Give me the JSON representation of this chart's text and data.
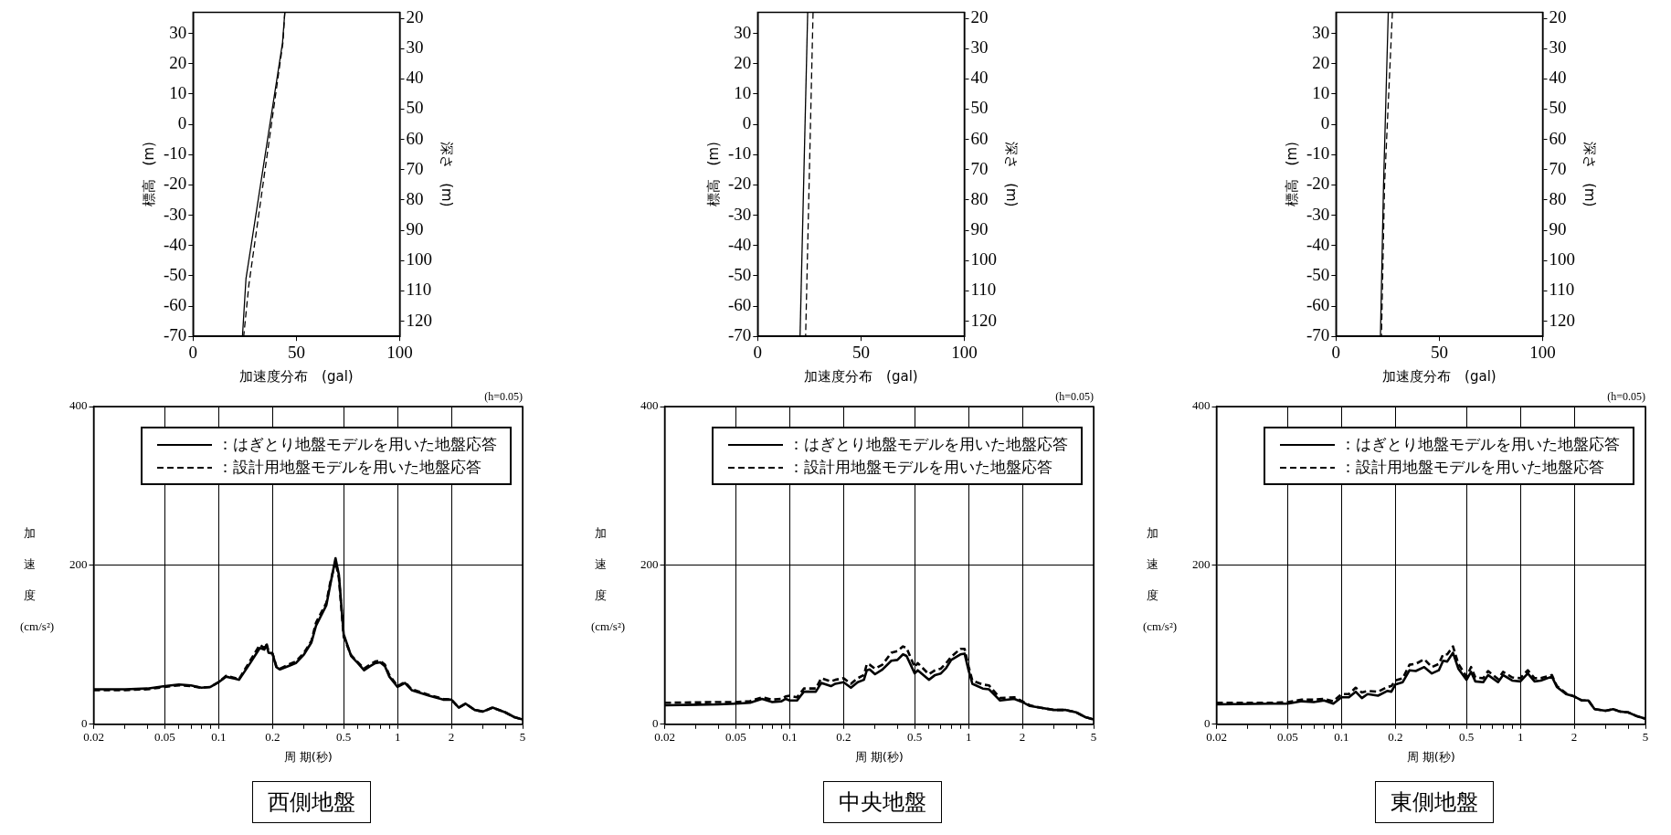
{
  "chart_data": [
    {
      "type": "line",
      "xlabel": "加速度分布　(gal)",
      "ylabel": "標高　(m)",
      "y2label": "深さ　(m)",
      "xlim": [
        0,
        100
      ],
      "xticks": [
        0,
        50,
        100
      ],
      "ylim": [
        -70,
        37
      ],
      "yticks": [
        -70,
        -60,
        -50,
        -40,
        -30,
        -20,
        -10,
        0,
        10,
        20,
        30
      ],
      "y2lim": [
        125,
        18
      ],
      "y2ticks": [
        20,
        30,
        40,
        50,
        60,
        70,
        80,
        90,
        100,
        110,
        120
      ],
      "grid": false,
      "marker": "none",
      "series": [
        {
          "color": "#000000",
          "line_style": "solid",
          "x": [
            44.4,
            43.3,
            25.6,
            23.9
          ],
          "values": [
            37,
            27,
            -51,
            -70
          ]
        },
        {
          "color": "#000000",
          "line_style": "dashed",
          "x": [
            44.4,
            43.5,
            27,
            24.5
          ],
          "values": [
            37,
            27,
            -53,
            -70
          ]
        }
      ]
    },
    {
      "type": "line",
      "xlabel": "加速度分布　(gal)",
      "ylabel": "標高　(m)",
      "y2label": "深さ　(m)",
      "xlim": [
        0,
        100
      ],
      "xticks": [
        0,
        50,
        100
      ],
      "ylim": [
        -70,
        37
      ],
      "yticks": [
        -70,
        -60,
        -50,
        -40,
        -30,
        -20,
        -10,
        0,
        10,
        20,
        30
      ],
      "y2lim": [
        125,
        18
      ],
      "y2ticks": [
        20,
        30,
        40,
        50,
        60,
        70,
        80,
        90,
        100,
        110,
        120
      ],
      "grid": false,
      "marker": "none",
      "series": [
        {
          "color": "#000000",
          "line_style": "solid",
          "x": [
            24.2,
            20.5
          ],
          "values": [
            37,
            -70
          ]
        },
        {
          "color": "#000000",
          "line_style": "dashed",
          "x": [
            26.8,
            23.2
          ],
          "values": [
            37,
            -70
          ]
        }
      ]
    },
    {
      "type": "line",
      "xlabel": "加速度分布　(gal)",
      "ylabel": "標高　(m)",
      "y2label": "深さ　(m)",
      "xlim": [
        0,
        100
      ],
      "xticks": [
        0,
        50,
        100
      ],
      "ylim": [
        -70,
        37
      ],
      "yticks": [
        -70,
        -60,
        -50,
        -40,
        -30,
        -20,
        -10,
        0,
        10,
        20,
        30
      ],
      "y2lim": [
        125,
        18
      ],
      "y2ticks": [
        20,
        30,
        40,
        50,
        60,
        70,
        80,
        90,
        100,
        110,
        120
      ],
      "grid": false,
      "marker": "none",
      "series": [
        {
          "color": "#000000",
          "line_style": "solid",
          "x": [
            25.3,
            23,
            21.5
          ],
          "values": [
            37,
            -20,
            -70
          ]
        },
        {
          "color": "#000000",
          "line_style": "dashed",
          "x": [
            27.3,
            23.5,
            22
          ],
          "values": [
            37,
            -20,
            -70
          ]
        }
      ]
    },
    {
      "type": "line",
      "title": "西側地盤",
      "xlabel": "周 期(秒)",
      "ylabel": "加速度(cm/s²)",
      "log": "x",
      "xlim": [
        0.02,
        5
      ],
      "xticks": [
        0.02,
        {
          "value": 0.03,
          "label": null
        },
        {
          "value": 0.04,
          "label": null
        },
        0.05,
        {
          "value": 0.06,
          "label": null
        },
        {
          "value": 0.07,
          "label": null
        },
        {
          "value": 0.08,
          "label": null
        },
        {
          "value": 0.09,
          "label": null
        },
        0.1,
        0.2,
        {
          "value": 0.3,
          "label": null
        },
        {
          "value": 0.4,
          "label": null
        },
        0.5,
        {
          "value": 0.6,
          "label": null
        },
        {
          "value": 0.7,
          "label": null
        },
        {
          "value": 0.8,
          "label": null
        },
        {
          "value": 0.9,
          "label": null
        },
        1,
        2,
        {
          "value": 3,
          "label": null
        },
        {
          "value": 4,
          "label": null
        },
        5
      ],
      "ylim": [
        0,
        400
      ],
      "yticks": [
        0,
        200,
        400
      ],
      "grid": true,
      "legend": "top",
      "marker": "none",
      "annotations": [
        "(h=0.05)"
      ],
      "series": [
        {
          "name": "：はぎとり地盤モデルを用いた地盤応答",
          "color": "#000000",
          "line_style": "solid",
          "x": [
            0.02,
            0.03,
            0.04,
            0.05,
            0.06,
            0.07,
            0.08,
            0.09,
            0.1,
            0.11,
            0.13,
            0.15,
            0.17,
            0.18,
            0.185,
            0.19,
            0.2,
            0.21,
            0.22,
            0.25,
            0.27,
            0.3,
            0.33,
            0.35,
            0.4,
            0.42,
            0.45,
            0.47,
            0.5,
            0.55,
            0.6,
            0.65,
            0.7,
            0.75,
            0.8,
            0.85,
            0.9,
            1,
            1.1,
            1.2,
            1.5,
            1.8,
            2,
            2.2,
            2.4,
            2.7,
            3,
            3.4,
            4,
            4.5,
            5
          ],
          "values": [
            44,
            44,
            45,
            48,
            50,
            49,
            46,
            47,
            53,
            60,
            56,
            77,
            96,
            94,
            100,
            90,
            89,
            72,
            69,
            74,
            77,
            88,
            103,
            124,
            150,
            175,
            209,
            188,
            113,
            86,
            77,
            68,
            73,
            77,
            78,
            73,
            60,
            47,
            52,
            43,
            36,
            31,
            31,
            21,
            26,
            18,
            16,
            21,
            15,
            9,
            6
          ]
        },
        {
          "name": "：設計用地盤モデルを用いた地盤応答",
          "color": "#000000",
          "line_style": "dashed",
          "x": [
            0.02,
            0.03,
            0.04,
            0.05,
            0.06,
            0.07,
            0.08,
            0.09,
            0.1,
            0.11,
            0.13,
            0.15,
            0.17,
            0.18,
            0.185,
            0.19,
            0.2,
            0.21,
            0.22,
            0.25,
            0.27,
            0.3,
            0.33,
            0.35,
            0.4,
            0.42,
            0.45,
            0.47,
            0.5,
            0.55,
            0.6,
            0.65,
            0.7,
            0.75,
            0.8,
            0.85,
            0.9,
            1,
            1.1,
            1.2,
            1.5,
            1.8,
            2,
            2.2,
            2.4,
            2.7,
            3,
            3.4,
            4,
            4.5,
            5
          ],
          "values": [
            43,
            43,
            44,
            47,
            49,
            48,
            46,
            47,
            53,
            61,
            57,
            80,
            100,
            96,
            102,
            92,
            89,
            73,
            70,
            76,
            79,
            90,
            105,
            128,
            153,
            178,
            205,
            184,
            110,
            87,
            78,
            70,
            75,
            79,
            80,
            75,
            62,
            48,
            53,
            44,
            37,
            32,
            31,
            21,
            26,
            18,
            16,
            21,
            15,
            9,
            6
          ]
        }
      ]
    },
    {
      "type": "line",
      "title": "中央地盤",
      "xlabel": "周 期(秒)",
      "ylabel": "加速度(cm/s²)",
      "log": "x",
      "xlim": [
        0.02,
        5
      ],
      "xticks": [
        0.02,
        {
          "value": 0.03,
          "label": null
        },
        {
          "value": 0.04,
          "label": null
        },
        0.05,
        {
          "value": 0.06,
          "label": null
        },
        {
          "value": 0.07,
          "label": null
        },
        {
          "value": 0.08,
          "label": null
        },
        {
          "value": 0.09,
          "label": null
        },
        0.1,
        0.2,
        {
          "value": 0.3,
          "label": null
        },
        {
          "value": 0.4,
          "label": null
        },
        0.5,
        {
          "value": 0.6,
          "label": null
        },
        {
          "value": 0.7,
          "label": null
        },
        {
          "value": 0.8,
          "label": null
        },
        {
          "value": 0.9,
          "label": null
        },
        1,
        2,
        {
          "value": 3,
          "label": null
        },
        {
          "value": 4,
          "label": null
        },
        5
      ],
      "ylim": [
        0,
        400
      ],
      "yticks": [
        0,
        200,
        400
      ],
      "grid": true,
      "legend": "top",
      "marker": "none",
      "annotations": [
        "(h=0.05)"
      ],
      "series": [
        {
          "name": "：はぎとり地盤モデルを用いた地盤応答",
          "color": "#000000",
          "line_style": "solid",
          "x": [
            0.02,
            0.04,
            0.05,
            0.06,
            0.07,
            0.08,
            0.09,
            0.095,
            0.1,
            0.11,
            0.12,
            0.14,
            0.15,
            0.17,
            0.18,
            0.2,
            0.22,
            0.24,
            0.26,
            0.27,
            0.28,
            0.3,
            0.33,
            0.37,
            0.4,
            0.43,
            0.45,
            0.5,
            0.52,
            0.6,
            0.65,
            0.7,
            0.75,
            0.8,
            0.9,
            0.95,
            1,
            1.05,
            1.2,
            1.3,
            1.5,
            1.8,
            2,
            2.2,
            2.5,
            3,
            3.5,
            4,
            4.5,
            5
          ],
          "values": [
            24,
            25,
            26,
            27,
            32,
            28,
            29,
            32,
            30,
            30,
            41,
            41,
            52,
            48,
            51,
            53,
            46,
            53,
            56,
            68,
            69,
            63,
            69,
            80,
            81,
            88,
            86,
            64,
            68,
            56,
            62,
            64,
            71,
            81,
            88,
            89,
            68,
            51,
            45,
            44,
            30,
            32,
            28,
            23,
            21,
            18,
            18,
            15,
            9,
            6
          ]
        },
        {
          "name": "：設計用地盤モデルを用いた地盤応答",
          "color": "#000000",
          "line_style": "dashed",
          "x": [
            0.02,
            0.04,
            0.05,
            0.06,
            0.07,
            0.08,
            0.09,
            0.095,
            0.1,
            0.11,
            0.12,
            0.14,
            0.15,
            0.17,
            0.18,
            0.2,
            0.22,
            0.24,
            0.26,
            0.27,
            0.28,
            0.3,
            0.33,
            0.37,
            0.4,
            0.43,
            0.45,
            0.5,
            0.52,
            0.6,
            0.65,
            0.7,
            0.75,
            0.8,
            0.9,
            0.95,
            1,
            1.05,
            1.2,
            1.3,
            1.5,
            1.8,
            2,
            2.2,
            2.5,
            3,
            3.5,
            4,
            4.5,
            5
          ],
          "values": [
            27,
            28,
            28,
            29,
            34,
            31,
            32,
            35,
            36,
            34,
            45,
            45,
            58,
            54,
            56,
            58,
            51,
            58,
            62,
            76,
            75,
            70,
            75,
            90,
            92,
            98,
            96,
            72,
            77,
            63,
            68,
            70,
            77,
            85,
            95,
            95,
            73,
            55,
            50,
            49,
            33,
            34,
            29,
            24,
            21,
            18,
            18,
            15,
            9,
            6
          ]
        }
      ]
    },
    {
      "type": "line",
      "title": "東側地盤",
      "xlabel": "周 期(秒)",
      "ylabel": "加速度(cm/s²)",
      "log": "x",
      "xlim": [
        0.02,
        5
      ],
      "xticks": [
        0.02,
        {
          "value": 0.03,
          "label": null
        },
        {
          "value": 0.04,
          "label": null
        },
        0.05,
        {
          "value": 0.06,
          "label": null
        },
        {
          "value": 0.07,
          "label": null
        },
        {
          "value": 0.08,
          "label": null
        },
        {
          "value": 0.09,
          "label": null
        },
        0.1,
        0.2,
        {
          "value": 0.3,
          "label": null
        },
        {
          "value": 0.4,
          "label": null
        },
        0.5,
        {
          "value": 0.6,
          "label": null
        },
        {
          "value": 0.7,
          "label": null
        },
        {
          "value": 0.8,
          "label": null
        },
        {
          "value": 0.9,
          "label": null
        },
        1,
        2,
        {
          "value": 3,
          "label": null
        },
        {
          "value": 4,
          "label": null
        },
        5
      ],
      "ylim": [
        0,
        400
      ],
      "yticks": [
        0,
        200,
        400
      ],
      "grid": true,
      "legend": "top",
      "marker": "none",
      "annotations": [
        "(h=0.05)"
      ],
      "series": [
        {
          "name": "：はぎとり地盤モデルを用いた地盤応答",
          "color": "#000000",
          "line_style": "solid",
          "x": [
            0.02,
            0.04,
            0.05,
            0.06,
            0.07,
            0.08,
            0.09,
            0.1,
            0.11,
            0.12,
            0.13,
            0.14,
            0.16,
            0.18,
            0.19,
            0.2,
            0.22,
            0.24,
            0.26,
            0.29,
            0.32,
            0.35,
            0.37,
            0.39,
            0.42,
            0.45,
            0.5,
            0.53,
            0.56,
            0.62,
            0.66,
            0.75,
            0.8,
            0.9,
            1,
            1.1,
            1.2,
            1.3,
            1.5,
            1.6,
            1.8,
            2,
            2.2,
            2.4,
            2.6,
            3,
            3.3,
            3.6,
            4,
            4.5,
            5
          ],
          "values": [
            25,
            26,
            26,
            29,
            28,
            30,
            26,
            34,
            34,
            41,
            33,
            38,
            36,
            42,
            41,
            50,
            53,
            68,
            67,
            72,
            64,
            68,
            80,
            79,
            90,
            70,
            56,
            66,
            54,
            53,
            62,
            53,
            62,
            55,
            54,
            64,
            54,
            55,
            60,
            47,
            38,
            35,
            30,
            30,
            19,
            17,
            19,
            16,
            15,
            10,
            7
          ]
        },
        {
          "name": "：設計用地盤モデルを用いた地盤応答",
          "color": "#000000",
          "line_style": "dashed",
          "x": [
            0.02,
            0.04,
            0.05,
            0.06,
            0.07,
            0.08,
            0.09,
            0.1,
            0.11,
            0.12,
            0.13,
            0.14,
            0.16,
            0.18,
            0.19,
            0.2,
            0.22,
            0.24,
            0.26,
            0.29,
            0.32,
            0.35,
            0.37,
            0.39,
            0.42,
            0.45,
            0.5,
            0.53,
            0.56,
            0.62,
            0.66,
            0.75,
            0.8,
            0.9,
            1,
            1.1,
            1.2,
            1.3,
            1.5,
            1.6,
            1.8,
            2,
            2.2,
            2.4,
            2.6,
            3,
            3.3,
            3.6,
            4,
            4.5,
            5
          ],
          "values": [
            27,
            27,
            28,
            31,
            31,
            32,
            29,
            38,
            38,
            46,
            40,
            42,
            41,
            47,
            48,
            55,
            58,
            75,
            76,
            82,
            72,
            76,
            88,
            88,
            98,
            76,
            60,
            72,
            59,
            58,
            67,
            57,
            66,
            59,
            58,
            68,
            58,
            58,
            62,
            48,
            39,
            35,
            30,
            30,
            19,
            17,
            19,
            16,
            15,
            10,
            7
          ]
        }
      ]
    }
  ]
}
